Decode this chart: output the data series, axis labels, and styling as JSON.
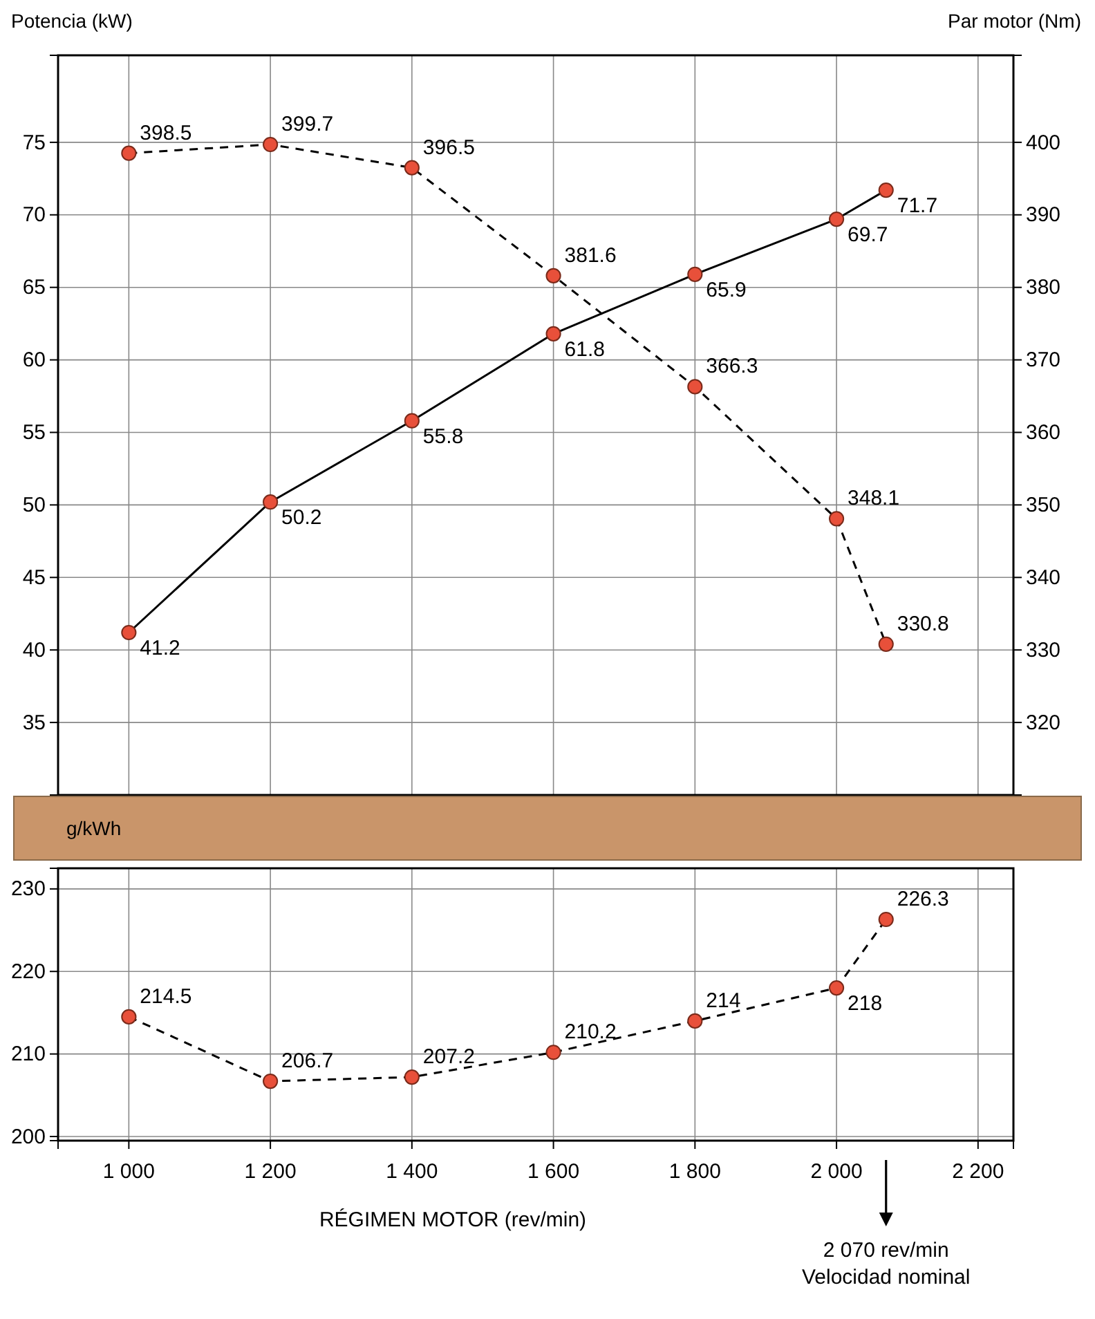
{
  "chart_data": [
    {
      "type": "line",
      "ylabel": "Potencia (kW)",
      "y2label": "Par motor (Nm)",
      "xlim": [
        900,
        2250
      ],
      "xticks": [
        {
          "value": 1000,
          "label": null
        },
        {
          "value": 1200,
          "label": null
        },
        {
          "value": 1400,
          "label": null
        },
        {
          "value": 1600,
          "label": null
        },
        {
          "value": 1800,
          "label": null
        },
        {
          "value": 2000,
          "label": null
        },
        {
          "value": 2200,
          "label": null
        }
      ],
      "ylim": [
        30,
        81
      ],
      "yticks": [
        35,
        40,
        45,
        50,
        55,
        60,
        65,
        70,
        75
      ],
      "y2lim": [
        310,
        412
      ],
      "y2ticks": [
        320,
        330,
        340,
        350,
        360,
        370,
        380,
        390,
        400
      ],
      "tick_labels": "y",
      "grid": true,
      "marker": "circle",
      "data_labels": true,
      "series": [
        {
          "color": "#000000",
          "line_style": "solid",
          "x": [
            1000,
            1200,
            1400,
            1600,
            1800,
            2000,
            2070
          ],
          "values": [
            41.2,
            50.2,
            55.8,
            61.8,
            65.9,
            69.7,
            71.7
          ],
          "colors": [
            "#e8503a",
            "#e8503a",
            "#e8503a",
            "#e8503a",
            "#e8503a",
            "#e8503a",
            "#e8503a"
          ]
        },
        {
          "color": "#000000",
          "line_style": "dashed",
          "axis": "y2",
          "x": [
            1000,
            1200,
            1400,
            1600,
            1800,
            2000,
            2070
          ],
          "values": [
            398.5,
            399.7,
            396.5,
            381.6,
            366.3,
            348.1,
            330.8
          ],
          "colors": [
            "#e8503a",
            "#e8503a",
            "#e8503a",
            "#e8503a",
            "#e8503a",
            "#e8503a",
            "#e8503a"
          ]
        }
      ]
    },
    {
      "type": "line",
      "ylabel": "g/kWh",
      "xlabel": "RÉGIMEN MOTOR (rev/min)",
      "xlim": [
        900,
        2250
      ],
      "xticks": [
        {
          "value": 1000,
          "label": "1 000"
        },
        {
          "value": 1200,
          "label": "1 200"
        },
        {
          "value": 1400,
          "label": "1 400"
        },
        {
          "value": 1600,
          "label": "1 600"
        },
        {
          "value": 1800,
          "label": "1 800"
        },
        {
          "value": 2000,
          "label": "2 000"
        },
        {
          "value": 2200,
          "label": "2 200"
        }
      ],
      "ylim": [
        199.5,
        232.5
      ],
      "yticks": [
        200,
        210,
        220,
        230
      ],
      "grid": true,
      "marker": "circle",
      "data_labels": true,
      "annotations": [
        "2 070 rev/min\nVelocidad nominal"
      ],
      "series": [
        {
          "color": "#000000",
          "line_style": "dashed",
          "x": [
            1000,
            1200,
            1400,
            1600,
            1800,
            2000,
            2070
          ],
          "values": [
            214.5,
            206.7,
            207.2,
            210.2,
            214,
            218,
            226.3
          ],
          "colors": [
            "#e8503a",
            "#e8503a",
            "#e8503a",
            "#e8503a",
            "#e8503a",
            "#e8503a",
            "#e8503a"
          ]
        }
      ]
    }
  ]
}
